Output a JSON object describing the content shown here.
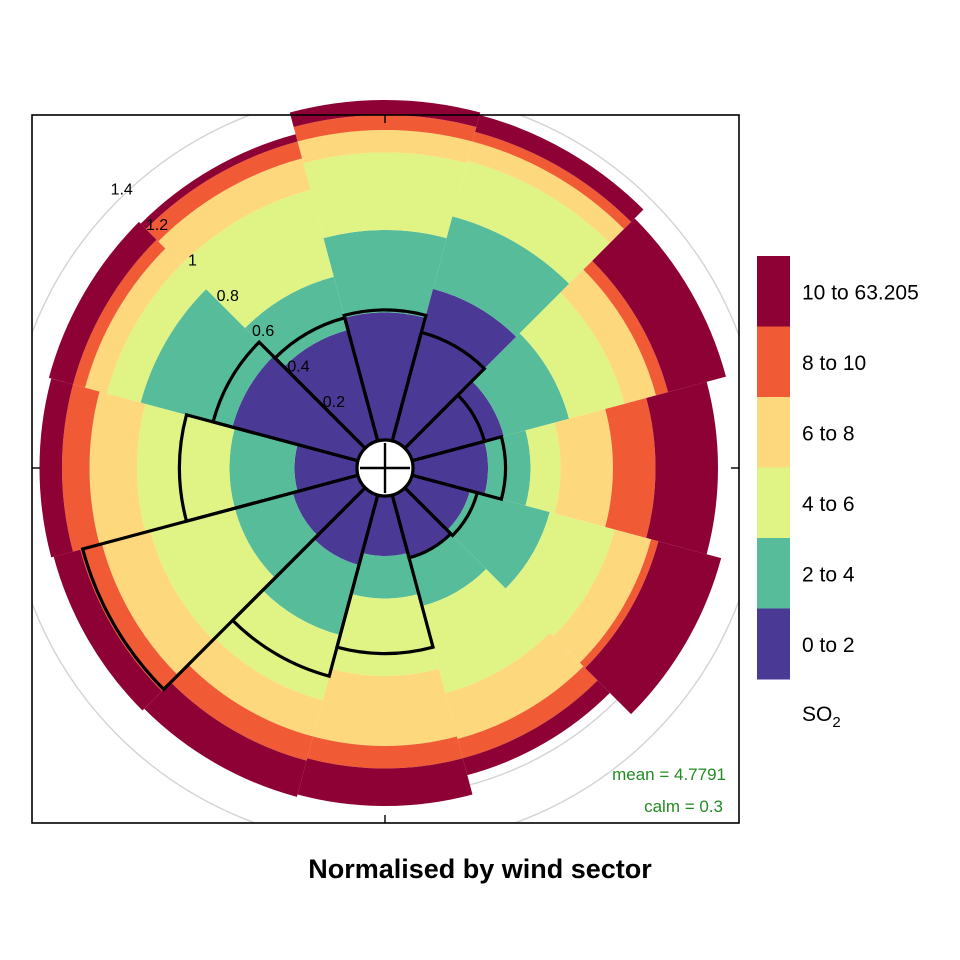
{
  "chart_data": {
    "type": "polar-stacked-bar",
    "title": "Normalised by wind sector",
    "radial_ticks": [
      "0.2",
      "0.4",
      "0.6",
      "0.8",
      "1",
      "1.2",
      "1.4"
    ],
    "radial_tick_values": [
      0.2,
      0.4,
      0.6,
      0.8,
      1.0,
      1.2,
      1.4
    ],
    "radial_max": 1.4,
    "grid": true,
    "legend_placement": "right",
    "legend": {
      "title": "SO",
      "title_subscript": "2",
      "bins": [
        {
          "label": "10 to 63.205",
          "color": "#8E0134"
        },
        {
          "label": "8 to 10",
          "color": "#F05A35"
        },
        {
          "label": "6 to 8",
          "color": "#FDD87C"
        },
        {
          "label": "4 to 6",
          "color": "#E0F486"
        },
        {
          "label": "2 to 4",
          "color": "#57BC99"
        },
        {
          "label": "0 to 2",
          "color": "#4B3A95"
        }
      ]
    },
    "sector_directions_deg": [
      0,
      30,
      60,
      90,
      120,
      150,
      180,
      210,
      240,
      270,
      300,
      330
    ],
    "stack_order": [
      "0 to 2",
      "2 to 4",
      "4 to 6",
      "6 to 8",
      "8 to 10",
      "10 to 63.205"
    ],
    "cumulative_bounds": [
      [
        0.51,
        0.84,
        1.15,
        1.24,
        1.3,
        1.36
      ],
      [
        0.63,
        0.93,
        1.16,
        1.24,
        1.28,
        1.35
      ],
      [
        0.38,
        0.65,
        0.88,
        1.01,
        1.06,
        1.3
      ],
      [
        0.3,
        0.47,
        0.59,
        0.8,
        0.97,
        1.22
      ],
      [
        0.24,
        0.57,
        0.84,
        0.99,
        1.02,
        1.28
      ],
      [
        0.26,
        0.46,
        0.82,
        1.01,
        1.09,
        1.16
      ],
      [
        0.24,
        0.41,
        0.72,
        1.0,
        1.09,
        1.24
      ],
      [
        0.29,
        0.58,
        0.85,
        1.0,
        1.1,
        1.25
      ],
      [
        0.27,
        0.51,
        0.86,
        1.06,
        1.15,
        1.26
      ],
      [
        0.25,
        0.51,
        0.88,
        1.07,
        1.18,
        1.27
      ],
      [
        0.52,
        0.9,
        1.04,
        1.13,
        1.18,
        1.28
      ],
      [
        0.46,
        0.68,
        1.04,
        1.17,
        1.24,
        1.27
      ]
    ],
    "highlight_outlines": [
      0.52,
      0.45,
      0.3,
      0.37,
      0.27,
      0.26,
      0.63,
      0.75,
      1.14,
      0.71,
      0.6,
      0.51
    ],
    "stats": {
      "mean_label": "mean  =  4.7791",
      "calm_label": "calm =  0.3",
      "color": "#228B22"
    }
  }
}
